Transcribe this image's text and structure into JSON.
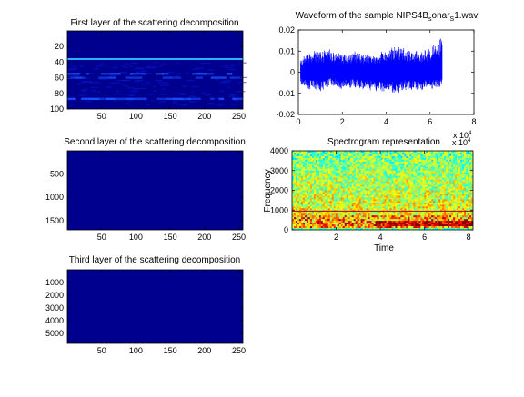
{
  "chart_data": [
    {
      "type": "heatmap",
      "title": "First layer of the scattering decomposition",
      "xlim": [
        0,
        256
      ],
      "ylim": [
        0,
        100
      ],
      "x_ticks": [
        50,
        100,
        150,
        200,
        250
      ],
      "y_ticks": [
        20,
        40,
        60,
        80,
        100
      ],
      "colormap": "jet",
      "background_color": "#00008f",
      "bands": [
        {
          "row": 36,
          "level": 0.55,
          "color": "#2cb4ff"
        },
        {
          "row": 55,
          "level": 0.3,
          "color": "#1e5cff"
        },
        {
          "row": 60,
          "level": 0.22,
          "color": "#1646ef"
        },
        {
          "row": 87,
          "level": 0.25,
          "color": "#1a50ff"
        }
      ]
    },
    {
      "type": "line",
      "title": "Waveform of the sample NIPS4B_sonar_S1.wav",
      "title_main": "Waveform of the sample NIPS4B",
      "title_sub1": "s",
      "title_mid": "onar",
      "title_sub2": "S",
      "title_end": "1.wav",
      "xlim": [
        0,
        8
      ],
      "ylim": [
        -0.02,
        0.02
      ],
      "x_ticks": [
        "0",
        "2",
        "4",
        "6",
        "8"
      ],
      "x_tick_values": [
        0,
        2,
        4,
        6,
        8
      ],
      "y_ticks": [
        "-0.02",
        "-0.01",
        "0",
        "0.01",
        "0.02"
      ],
      "y_tick_values": [
        -0.02,
        -0.01,
        0,
        0.01,
        0.02
      ],
      "x_multiplier_base": "x 10",
      "x_multiplier_exp": "4",
      "signal_end": 6.55,
      "envelope": [
        {
          "x": 0.1,
          "min": -0.006,
          "max": 0.006
        },
        {
          "x": 0.5,
          "min": -0.008,
          "max": 0.01
        },
        {
          "x": 1.0,
          "min": -0.009,
          "max": 0.01
        },
        {
          "x": 1.5,
          "min": -0.006,
          "max": 0.011
        },
        {
          "x": 2.0,
          "min": -0.008,
          "max": 0.008
        },
        {
          "x": 2.5,
          "min": -0.007,
          "max": 0.01
        },
        {
          "x": 3.0,
          "min": -0.008,
          "max": 0.009
        },
        {
          "x": 3.5,
          "min": -0.009,
          "max": 0.008
        },
        {
          "x": 4.0,
          "min": -0.009,
          "max": 0.011
        },
        {
          "x": 4.5,
          "min": -0.01,
          "max": 0.012
        },
        {
          "x": 5.0,
          "min": -0.008,
          "max": 0.011
        },
        {
          "x": 5.5,
          "min": -0.009,
          "max": 0.01
        },
        {
          "x": 6.0,
          "min": -0.008,
          "max": 0.011
        },
        {
          "x": 6.5,
          "min": -0.007,
          "max": 0.016
        }
      ],
      "line_color": "#0000ff"
    },
    {
      "type": "heatmap",
      "title": "Second layer of the scattering decomposition",
      "xlim": [
        0,
        256
      ],
      "ylim": [
        0,
        1700
      ],
      "x_ticks": [
        50,
        100,
        150,
        200,
        250
      ],
      "y_ticks": [
        500,
        1000,
        1500
      ],
      "colormap": "jet",
      "background_color": "#00008f"
    },
    {
      "type": "heatmap",
      "title": "Spectrogram representation",
      "xlabel": "Time",
      "ylabel": "Frequency",
      "xlim": [
        0,
        8.2
      ],
      "ylim": [
        0,
        4000
      ],
      "x_ticks": [
        2,
        4,
        6,
        8
      ],
      "y_ticks": [
        0,
        1000,
        2000,
        3000,
        4000
      ],
      "x_multiplier_base": "x 10",
      "x_multiplier_exp": "4",
      "colormap": "jet",
      "line_frequency": 950,
      "red_band": [
        200,
        500
      ]
    },
    {
      "type": "heatmap",
      "title": "Third layer of the scattering decomposition",
      "xlim": [
        0,
        256
      ],
      "ylim": [
        0,
        5800
      ],
      "x_ticks": [
        50,
        100,
        150,
        200,
        250
      ],
      "y_ticks": [
        1000,
        2000,
        3000,
        4000,
        5000
      ],
      "colormap": "jet",
      "background_color": "#00008f"
    }
  ]
}
